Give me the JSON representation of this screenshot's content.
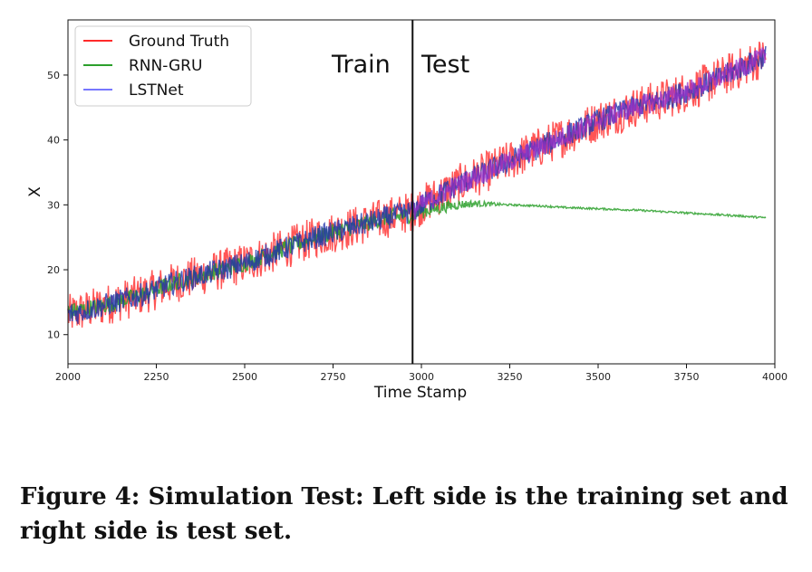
{
  "chart_data": {
    "type": "line",
    "xlabel": "Time Stamp",
    "ylabel": "X",
    "xlim": [
      2000,
      4000
    ],
    "ylim": [
      5.5,
      58.5
    ],
    "xticks": [
      2000,
      2250,
      2500,
      2750,
      3000,
      3250,
      3500,
      3750,
      4000
    ],
    "yticks": [
      10,
      20,
      30,
      40,
      50
    ],
    "grid": false,
    "legend_position": "top-left",
    "split_x": 2975,
    "annotations": [
      "Train",
      "Test"
    ],
    "series": [
      {
        "name": "Ground Truth",
        "color": "#ff2a2a",
        "x": [
          2000,
          2100,
          2200,
          2300,
          2400,
          2500,
          2600,
          2700,
          2800,
          2900,
          2975,
          3000,
          3100,
          3200,
          3300,
          3400,
          3500,
          3600,
          3700,
          3800,
          3900,
          3975
        ],
        "y": [
          13,
          14.5,
          16,
          18,
          19.5,
          21,
          23,
          25,
          26.5,
          28,
          29,
          30,
          33,
          35.5,
          38,
          40.5,
          43,
          45,
          46.5,
          48.5,
          51,
          53
        ],
        "noise": 3.2
      },
      {
        "name": "RNN-GRU",
        "color": "#2ca02c",
        "x": [
          2000,
          2100,
          2200,
          2300,
          2400,
          2500,
          2600,
          2700,
          2800,
          2900,
          2975,
          3000,
          3050,
          3100,
          3150,
          3200,
          3250,
          3300,
          3350,
          3400,
          3500,
          3600,
          3700,
          3800,
          3900,
          3975
        ],
        "y": [
          13.5,
          14.5,
          16,
          18,
          19.5,
          21,
          23,
          25,
          26.5,
          28,
          28.5,
          29,
          29.5,
          30,
          30.2,
          30.1,
          30,
          29.9,
          29.8,
          29.6,
          29.4,
          29.2,
          28.9,
          28.6,
          28.3,
          28
        ],
        "noise": 1.3
      },
      {
        "name": "LSTNet",
        "color": "#2233aa",
        "x": [
          2000,
          2100,
          2200,
          2300,
          2400,
          2500,
          2600,
          2700,
          2800,
          2900,
          2975,
          3000,
          3100,
          3200,
          3300,
          3400,
          3500,
          3600,
          3700,
          3800,
          3900,
          3975
        ],
        "y": [
          13,
          14.5,
          16,
          18,
          19.5,
          21,
          23,
          25,
          26.5,
          28,
          29,
          30,
          33,
          35.5,
          38,
          40.5,
          43,
          45,
          46.5,
          48.5,
          51,
          53
        ],
        "noise": 1.8
      }
    ]
  },
  "caption": "Figure 4: Simulation Test: Left side is the training set and right side is test set."
}
